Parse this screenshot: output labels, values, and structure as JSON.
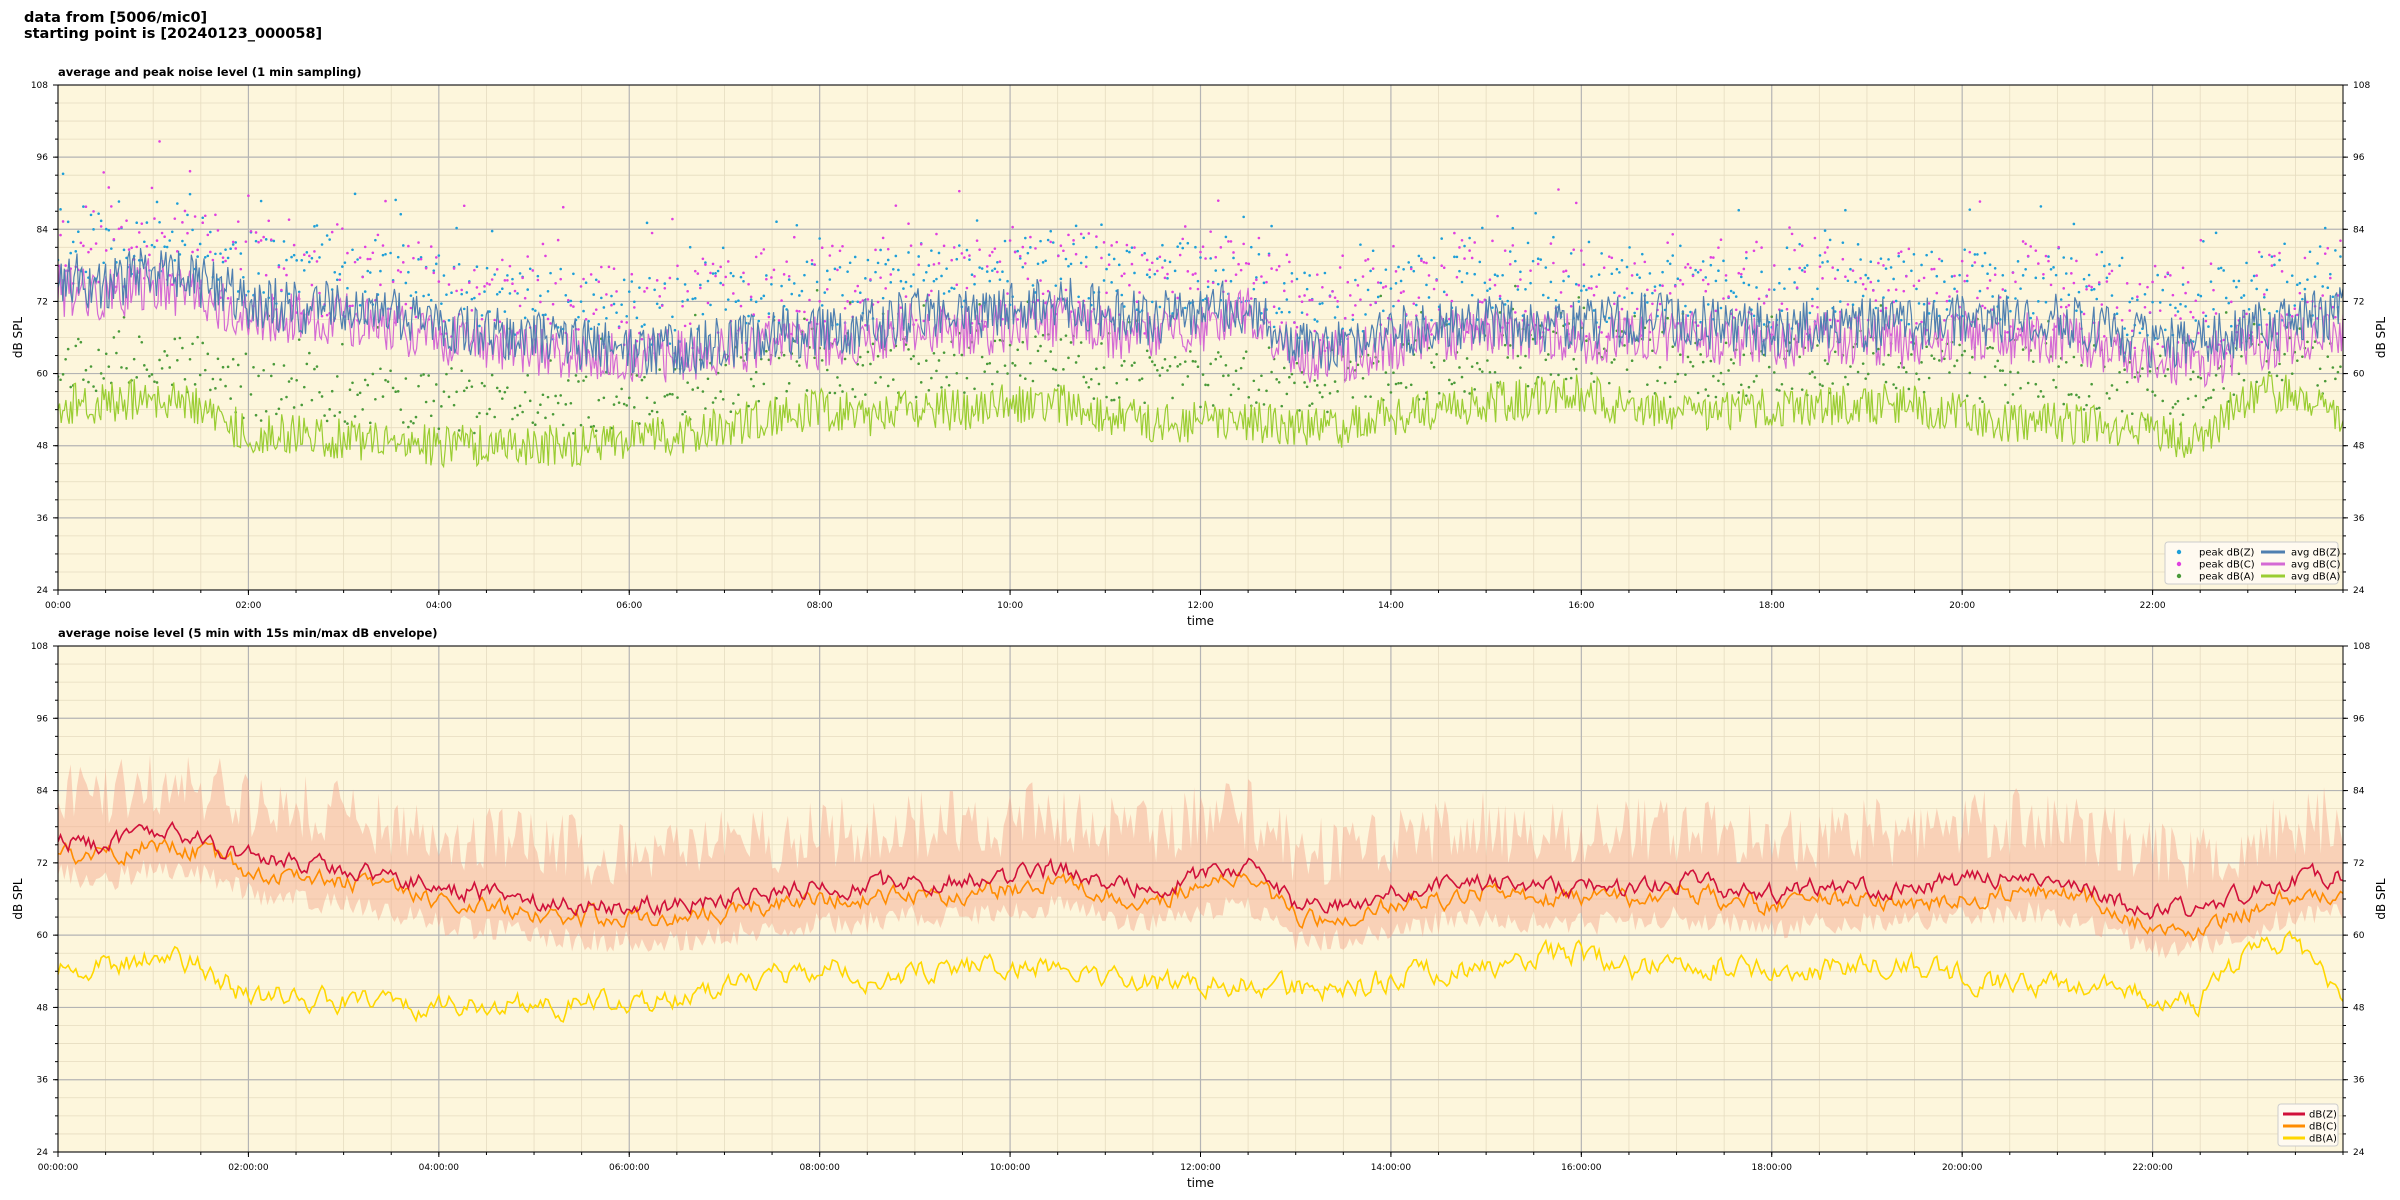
{
  "header": {
    "line1": "data from [5006/mic0]",
    "line2": "starting point is [20240123_000058]"
  },
  "colors": {
    "background": "#fdf6dc",
    "grid_major": "#b4b4b4",
    "grid_minor": "#e6dcc0",
    "peak_z": "#1e9fd8",
    "peak_c": "#e040e0",
    "peak_a": "#4a9a3a",
    "avg_z": "#4f7fb0",
    "avg_c": "#d46ad4",
    "avg_a": "#9acd32",
    "dbz": "#d0103a",
    "dbc": "#ff8c00",
    "dba": "#ffd700",
    "envelope": "#f4a58a"
  },
  "chart_data": [
    {
      "type": "line",
      "title": "average and peak noise level (1 min sampling)",
      "xlabel": "time",
      "ylabel": "dB SPL",
      "ylim": [
        24,
        108
      ],
      "xlim_hours": [
        0,
        24
      ],
      "grid": true,
      "legend_placement": "bottom-right",
      "yticks": [
        "24",
        "36",
        "48",
        "60",
        "72",
        "84",
        "96",
        "108"
      ],
      "xticks": [
        "00:00",
        "02:00",
        "04:00",
        "06:00",
        "08:00",
        "10:00",
        "12:00",
        "14:00",
        "16:00",
        "18:00",
        "20:00",
        "22:00"
      ],
      "legend": [
        "peak dB(Z)",
        "peak dB(C)",
        "peak dB(A)",
        "avg dB(Z)",
        "avg dB(C)",
        "avg dB(A)"
      ],
      "hours": [
        0,
        0.5,
        1,
        1.5,
        2,
        2.5,
        3,
        3.5,
        4,
        4.5,
        5,
        5.5,
        6,
        6.5,
        7,
        7.5,
        8,
        8.5,
        9,
        9.5,
        10,
        10.5,
        11,
        11.5,
        12,
        12.5,
        13,
        13.5,
        14,
        14.5,
        15,
        15.5,
        16,
        16.5,
        17,
        17.5,
        18,
        18.5,
        19,
        19.5,
        20,
        20.5,
        21,
        21.5,
        22,
        22.5,
        23,
        23.5,
        24
      ],
      "series": [
        {
          "name": "avg dB(Z)",
          "values": [
            76,
            75,
            77,
            75,
            72,
            71,
            71,
            70,
            68,
            67,
            66,
            65,
            64,
            64,
            65,
            67,
            67,
            68,
            70,
            70,
            71,
            72,
            70,
            69,
            71,
            71,
            65,
            65,
            67,
            68,
            69,
            68,
            68,
            69,
            69,
            68,
            67,
            68,
            68,
            68,
            69,
            69,
            69,
            67,
            65,
            65,
            67,
            69,
            70
          ]
        },
        {
          "name": "avg dB(C)",
          "values": [
            74,
            73,
            75,
            73,
            70,
            69,
            69,
            68,
            66,
            65,
            64,
            63,
            63,
            63,
            64,
            65,
            65,
            66,
            68,
            67,
            68,
            69,
            67,
            66,
            68,
            70,
            63,
            63,
            65,
            66,
            67,
            66,
            66,
            66,
            66,
            66,
            65,
            66,
            66,
            65,
            66,
            66,
            66,
            64,
            62,
            62,
            64,
            66,
            67
          ]
        },
        {
          "name": "avg dB(A)",
          "values": [
            55,
            55,
            56,
            54,
            50,
            50,
            49,
            49,
            48,
            48,
            48,
            48,
            49,
            50,
            51,
            53,
            54,
            53,
            54,
            54,
            55,
            55,
            53,
            52,
            52,
            52,
            51,
            51,
            53,
            54,
            55,
            56,
            57,
            54,
            54,
            54,
            54,
            54,
            55,
            55,
            53,
            52,
            52,
            51,
            50,
            49,
            56,
            57,
            51
          ]
        }
      ]
    },
    {
      "type": "line",
      "title": "average noise level (5 min with 15s min/max dB envelope)",
      "xlabel": "time",
      "ylabel": "dB SPL",
      "ylim": [
        24,
        108
      ],
      "xlim_hours": [
        0,
        24
      ],
      "grid": true,
      "legend_placement": "bottom-right",
      "yticks": [
        "24",
        "36",
        "48",
        "60",
        "72",
        "84",
        "96",
        "108"
      ],
      "xticks": [
        "00:00:00",
        "02:00:00",
        "04:00:00",
        "06:00:00",
        "08:00:00",
        "10:00:00",
        "12:00:00",
        "14:00:00",
        "16:00:00",
        "18:00:00",
        "20:00:00",
        "22:00:00"
      ],
      "legend": [
        "dB(Z)",
        "dB(C)",
        "dB(A)"
      ],
      "hours": [
        0,
        0.5,
        1,
        1.5,
        2,
        2.5,
        3,
        3.5,
        4,
        4.5,
        5,
        5.5,
        6,
        6.5,
        7,
        7.5,
        8,
        8.5,
        9,
        9.5,
        10,
        10.5,
        11,
        11.5,
        12,
        12.5,
        13,
        13.5,
        14,
        14.5,
        15,
        15.5,
        16,
        16.5,
        17,
        17.5,
        18,
        18.5,
        19,
        19.5,
        20,
        20.5,
        21,
        21.5,
        22,
        22.5,
        23,
        23.5,
        24
      ],
      "series": [
        {
          "name": "dB(Z)",
          "values": [
            76,
            75,
            77,
            76,
            73,
            72,
            71,
            70,
            68,
            67,
            66,
            65,
            65,
            65,
            66,
            67,
            68,
            68,
            69,
            69,
            70,
            71,
            69,
            68,
            70,
            71,
            65,
            65,
            67,
            68,
            69,
            68,
            68,
            68,
            69,
            68,
            67,
            68,
            68,
            68,
            69,
            70,
            69,
            67,
            64,
            64,
            67,
            69,
            70
          ]
        },
        {
          "name": "dB(C)",
          "values": [
            74,
            73,
            75,
            74,
            71,
            70,
            69,
            68,
            66,
            65,
            64,
            63,
            63,
            63,
            64,
            65,
            66,
            66,
            67,
            67,
            68,
            69,
            67,
            66,
            68,
            70,
            63,
            63,
            65,
            66,
            67,
            66,
            66,
            66,
            67,
            66,
            65,
            66,
            66,
            65,
            66,
            67,
            67,
            65,
            61,
            61,
            64,
            66,
            67
          ]
        },
        {
          "name": "dB(A)",
          "values": [
            54,
            55,
            56,
            55,
            50,
            50,
            49,
            49,
            48,
            48,
            48,
            48,
            49,
            50,
            51,
            53,
            55,
            53,
            54,
            54,
            55,
            55,
            53,
            52,
            52,
            52,
            51,
            51,
            53,
            54,
            55,
            56,
            57,
            54,
            55,
            55,
            54,
            54,
            55,
            55,
            53,
            52,
            52,
            51,
            50,
            49,
            57,
            59,
            49
          ]
        }
      ]
    }
  ]
}
